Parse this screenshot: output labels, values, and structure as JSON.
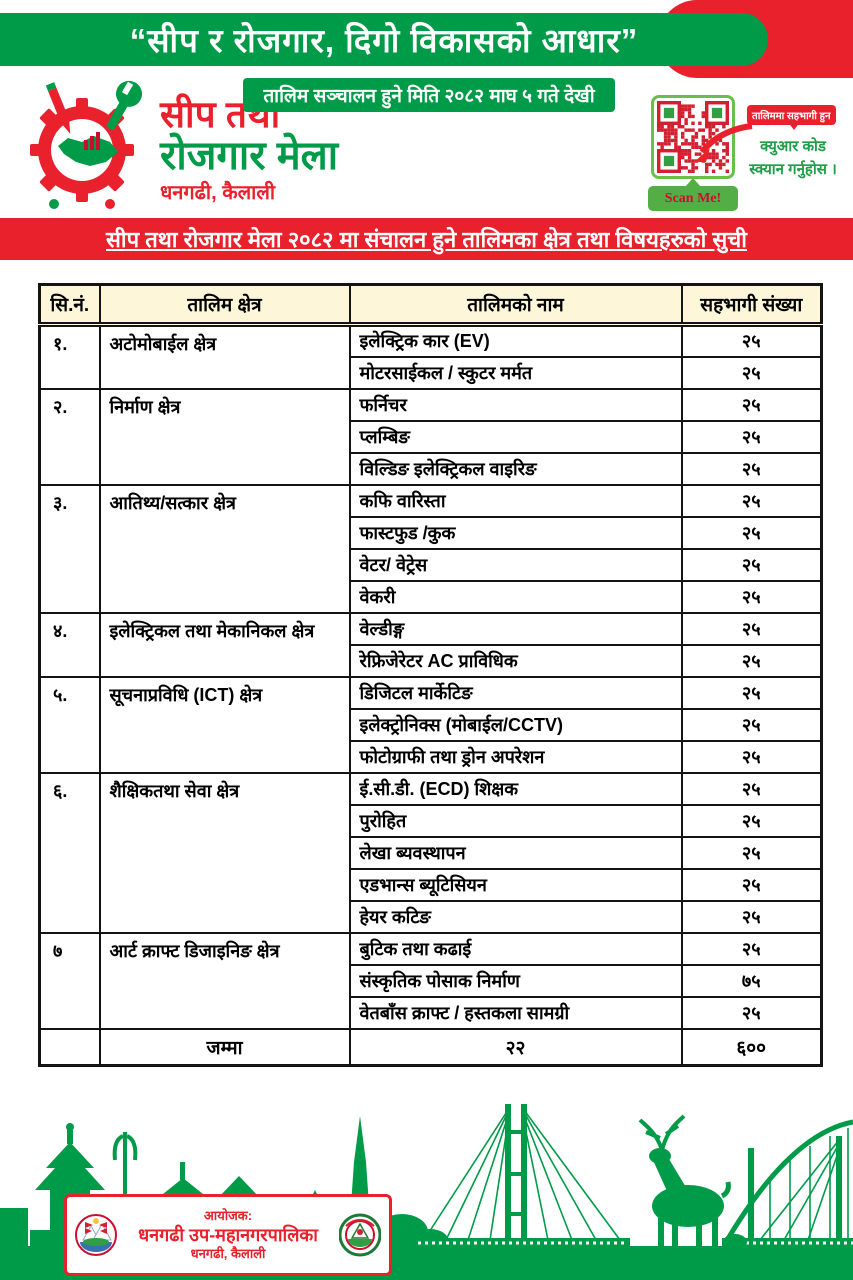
{
  "colors": {
    "green": "#009b48",
    "red": "#e8212d",
    "cream": "#fdf6d8",
    "qr_border_green": "#6abf4b",
    "button_green": "#54ae46"
  },
  "banner": {
    "quote": "“सीप र रोजगार,  दिगो विकासको आधार”"
  },
  "logo": {
    "title_line1": "सीप तथा",
    "title_line2": "रोजगार मेला",
    "subtitle": "धनगढी, कैलाली"
  },
  "date_box": {
    "text": "तालिम सञ्चालन हुने मिति २०८२ माघ ५ गते देखी"
  },
  "qr": {
    "scan_label": "Scan Me!",
    "bubble_text": "तालिममा सहभागी हुन",
    "instruction_line1": "क्युआर कोड",
    "instruction_line2": "स्क्यान गर्नुहोस ।"
  },
  "title_bar": {
    "text": "सीप तथा रोजगार मेला २०८२ मा संचालन हुने तालिमका क्षेत्र तथा विषयहरुको सुची"
  },
  "table": {
    "headers": [
      "सि.नं.",
      "तालिम क्षेत्र",
      "तालिमको नाम",
      "सहभागी संख्या"
    ],
    "groups": [
      {
        "sn": "१.",
        "area": "अटोमोबाईल क्षेत्र",
        "topics": [
          {
            "name": "इलेक्ट्रिक कार (EV)",
            "count": "२५"
          },
          {
            "name": "मोटरसाईकल / स्कुटर मर्मत",
            "count": "२५"
          }
        ]
      },
      {
        "sn": "२.",
        "area": "निर्माण क्षेत्र",
        "topics": [
          {
            "name": "फर्निचर",
            "count": "२५"
          },
          {
            "name": "प्लम्बिङ",
            "count": "२५"
          },
          {
            "name": "विल्डिङ इलेक्ट्रिकल वाइरिङ",
            "count": "२५"
          }
        ]
      },
      {
        "sn": "३.",
        "area": "आतिथ्य/सत्कार क्षेत्र",
        "topics": [
          {
            "name": "कफि वारिस्ता",
            "count": "२५"
          },
          {
            "name": "फास्टफुड /कुक",
            "count": "२५"
          },
          {
            "name": "वेटर/ वेट्रेस",
            "count": "२५"
          },
          {
            "name": "वेकरी",
            "count": "२५"
          }
        ]
      },
      {
        "sn": "४.",
        "area": "इलेक्ट्रिकल तथा मेकानिकल क्षेत्र",
        "topics": [
          {
            "name": "वेल्डीङ्ग",
            "count": "२५"
          },
          {
            "name": "रेफ्रिजेरेटर AC प्राविधिक",
            "count": "२५"
          }
        ]
      },
      {
        "sn": "५.",
        "area": "सूचनाप्रविधि (ICT)  क्षेत्र",
        "topics": [
          {
            "name": "डिजिटल मार्केटिङ",
            "count": "२५"
          },
          {
            "name": "इलेक्ट्रोनिक्स (मोबाईल/CCTV)",
            "count": "२५"
          },
          {
            "name": "फोटोग्राफी तथा ड्रोन अपरेशन",
            "count": "२५"
          }
        ]
      },
      {
        "sn": "६.",
        "area": "शैक्षिकतथा सेवा क्षेत्र",
        "topics": [
          {
            "name": "ई.सी.डी. (ECD) शिक्षक",
            "count": "२५"
          },
          {
            "name": "पुरोहित",
            "count": "२५"
          },
          {
            "name": "लेखा ब्यवस्थापन",
            "count": "२५"
          },
          {
            "name": "एडभान्स ब्यूटिसियन",
            "count": "२५"
          },
          {
            "name": "हेयर कटिङ",
            "count": "२५"
          }
        ]
      },
      {
        "sn": "७",
        "area": "आर्ट  क्राफ्ट डिजाइनिङ क्षेत्र",
        "topics": [
          {
            "name": "बुटिक तथा कढाई",
            "count": "२५"
          },
          {
            "name": "संस्कृतिक पोसाक निर्माण",
            "count": "७५"
          },
          {
            "name": "वेतबाँस क्राफ्ट / हस्तकला सामग्री",
            "count": "२५"
          }
        ]
      }
    ],
    "total": {
      "label": "जम्मा",
      "topics_count": "२२",
      "participants": "६००"
    }
  },
  "organizer": {
    "label": "आयोजक:",
    "name": "धनगढी उप-महानगरपालिका",
    "address": "धनगढी, कैलाली"
  }
}
